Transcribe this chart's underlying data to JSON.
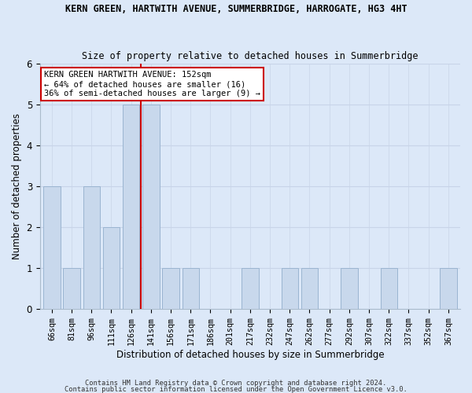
{
  "title_main": "KERN GREEN, HARTWITH AVENUE, SUMMERBRIDGE, HARROGATE, HG3 4HT",
  "title_sub": "Size of property relative to detached houses in Summerbridge",
  "xlabel": "Distribution of detached houses by size in Summerbridge",
  "ylabel": "Number of detached properties",
  "categories": [
    "66sqm",
    "81sqm",
    "96sqm",
    "111sqm",
    "126sqm",
    "141sqm",
    "156sqm",
    "171sqm",
    "186sqm",
    "201sqm",
    "217sqm",
    "232sqm",
    "247sqm",
    "262sqm",
    "277sqm",
    "292sqm",
    "307sqm",
    "322sqm",
    "337sqm",
    "352sqm",
    "367sqm"
  ],
  "values": [
    3,
    1,
    3,
    2,
    5,
    5,
    1,
    1,
    0,
    0,
    1,
    0,
    1,
    1,
    0,
    1,
    0,
    1,
    0,
    0,
    1
  ],
  "bar_color": "#c8d8ec",
  "bar_edge_color": "#9ab4d0",
  "vline_index": 4.5,
  "vline_color": "#cc0000",
  "ylim": [
    0,
    6
  ],
  "yticks": [
    0,
    1,
    2,
    3,
    4,
    5,
    6
  ],
  "annotation_title": "KERN GREEN HARTWITH AVENUE: 152sqm",
  "annotation_line1": "← 64% of detached houses are smaller (16)",
  "annotation_line2": "36% of semi-detached houses are larger (9) →",
  "annotation_box_color": "#ffffff",
  "annotation_border_color": "#cc0000",
  "footer1": "Contains HM Land Registry data © Crown copyright and database right 2024.",
  "footer2": "Contains public sector information licensed under the Open Government Licence v3.0.",
  "grid_color": "#c8d4e8",
  "bg_color": "#dce8f8",
  "fig_bg_color": "#dce8f8"
}
